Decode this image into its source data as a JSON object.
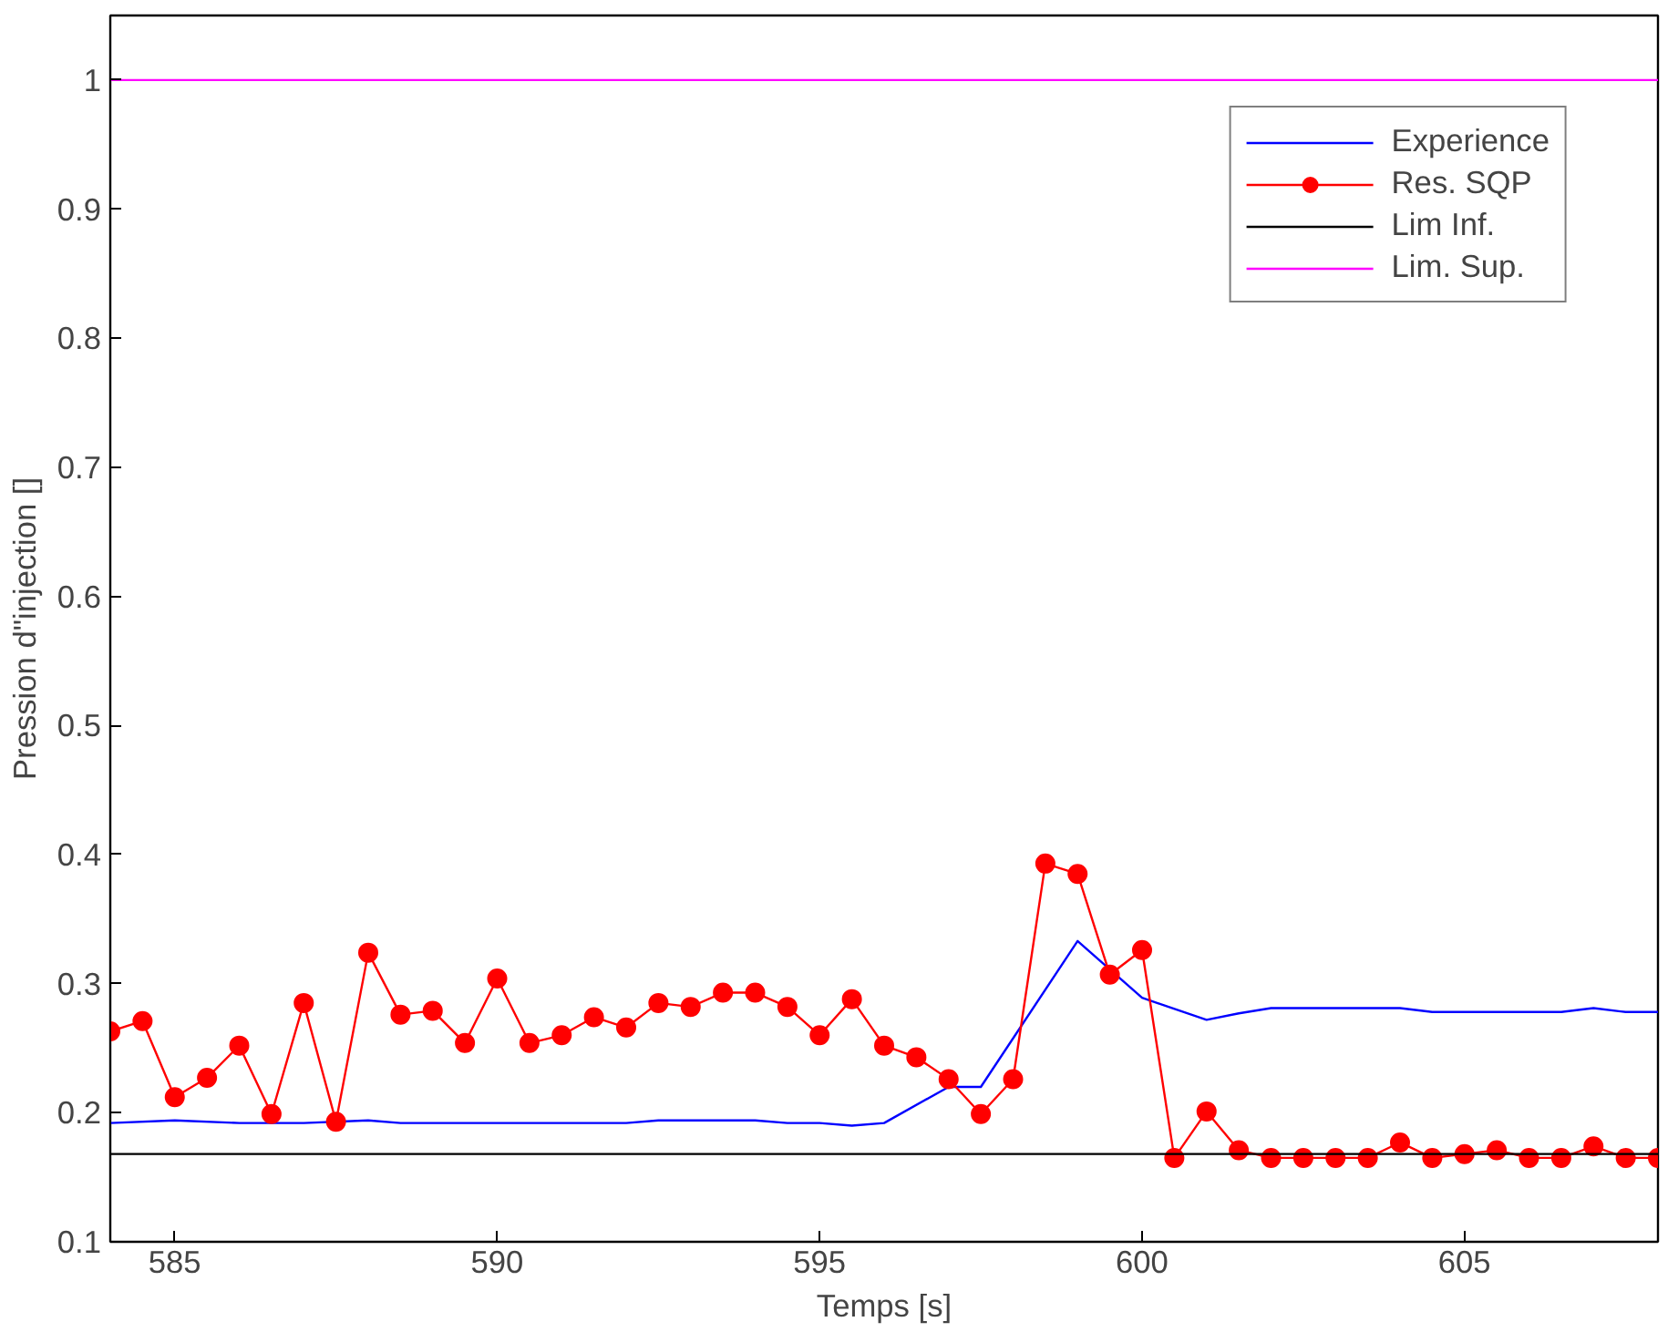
{
  "chart_data": {
    "type": "line",
    "xlabel": "Temps [s]",
    "ylabel": "Pression d\"injection []",
    "xlim": [
      584,
      608
    ],
    "ylim": [
      0.1,
      1.05
    ],
    "xticks": [
      585,
      590,
      595,
      600,
      605
    ],
    "yticks": [
      0.1,
      0.2,
      0.3,
      0.4,
      0.5,
      0.6,
      0.7,
      0.8,
      0.9,
      {
        "value": 1,
        "label": "1"
      }
    ],
    "grid": false,
    "legend": "top right",
    "line_style": "solid",
    "series": [
      {
        "name": "Experience",
        "color": "#0000ff",
        "marker": "none",
        "x": [
          584,
          585,
          586,
          587,
          588,
          588.5,
          592,
          592.5,
          594,
          594.5,
          595,
          595.5,
          596,
          597,
          597.5,
          599,
          600,
          601,
          601.5,
          602,
          604,
          604.5,
          606.5,
          607,
          607.5,
          608
        ],
        "values": [
          0.192,
          0.194,
          0.192,
          0.192,
          0.194,
          0.192,
          0.192,
          0.194,
          0.194,
          0.192,
          0.192,
          0.19,
          0.192,
          0.22,
          0.22,
          0.333,
          0.289,
          0.272,
          0.277,
          0.281,
          0.281,
          0.278,
          0.278,
          0.281,
          0.278,
          0.278
        ]
      },
      {
        "name": "Res. SQP",
        "color": "#ff0000",
        "marker": "circle",
        "x": [
          584,
          584.5,
          585,
          585.5,
          586,
          586.5,
          587,
          587.5,
          588,
          588.5,
          589,
          589.5,
          590,
          590.5,
          591,
          591.5,
          592,
          592.5,
          593,
          593.5,
          594,
          594.5,
          595,
          595.5,
          596,
          596.5,
          597,
          597.5,
          598,
          598.5,
          599,
          599.5,
          600,
          600.5,
          601,
          601.5,
          602,
          602.5,
          603,
          603.5,
          604,
          604.5,
          605,
          605.5,
          606,
          606.5,
          607,
          607.5,
          608
        ],
        "values": [
          0.263,
          0.271,
          0.212,
          0.227,
          0.252,
          0.199,
          0.285,
          0.193,
          0.324,
          0.276,
          0.279,
          0.254,
          0.304,
          0.254,
          0.26,
          0.274,
          0.266,
          0.285,
          0.282,
          0.293,
          0.293,
          0.282,
          0.26,
          0.288,
          0.252,
          0.243,
          0.226,
          0.199,
          0.226,
          0.393,
          0.385,
          0.307,
          0.326,
          0.165,
          0.201,
          0.171,
          0.165,
          0.165,
          0.165,
          0.165,
          0.177,
          0.165,
          0.168,
          0.171,
          0.165,
          0.165,
          0.174,
          0.165,
          0.165
        ]
      },
      {
        "name": "Lim Inf.",
        "color": "#000000",
        "marker": "none",
        "x": [
          584,
          608
        ],
        "values": [
          0.168,
          0.168
        ]
      },
      {
        "name": "Lim. Sup.",
        "color": "#ff00ff",
        "marker": "none",
        "x": [
          584,
          608
        ],
        "values": [
          1,
          1
        ]
      }
    ]
  }
}
